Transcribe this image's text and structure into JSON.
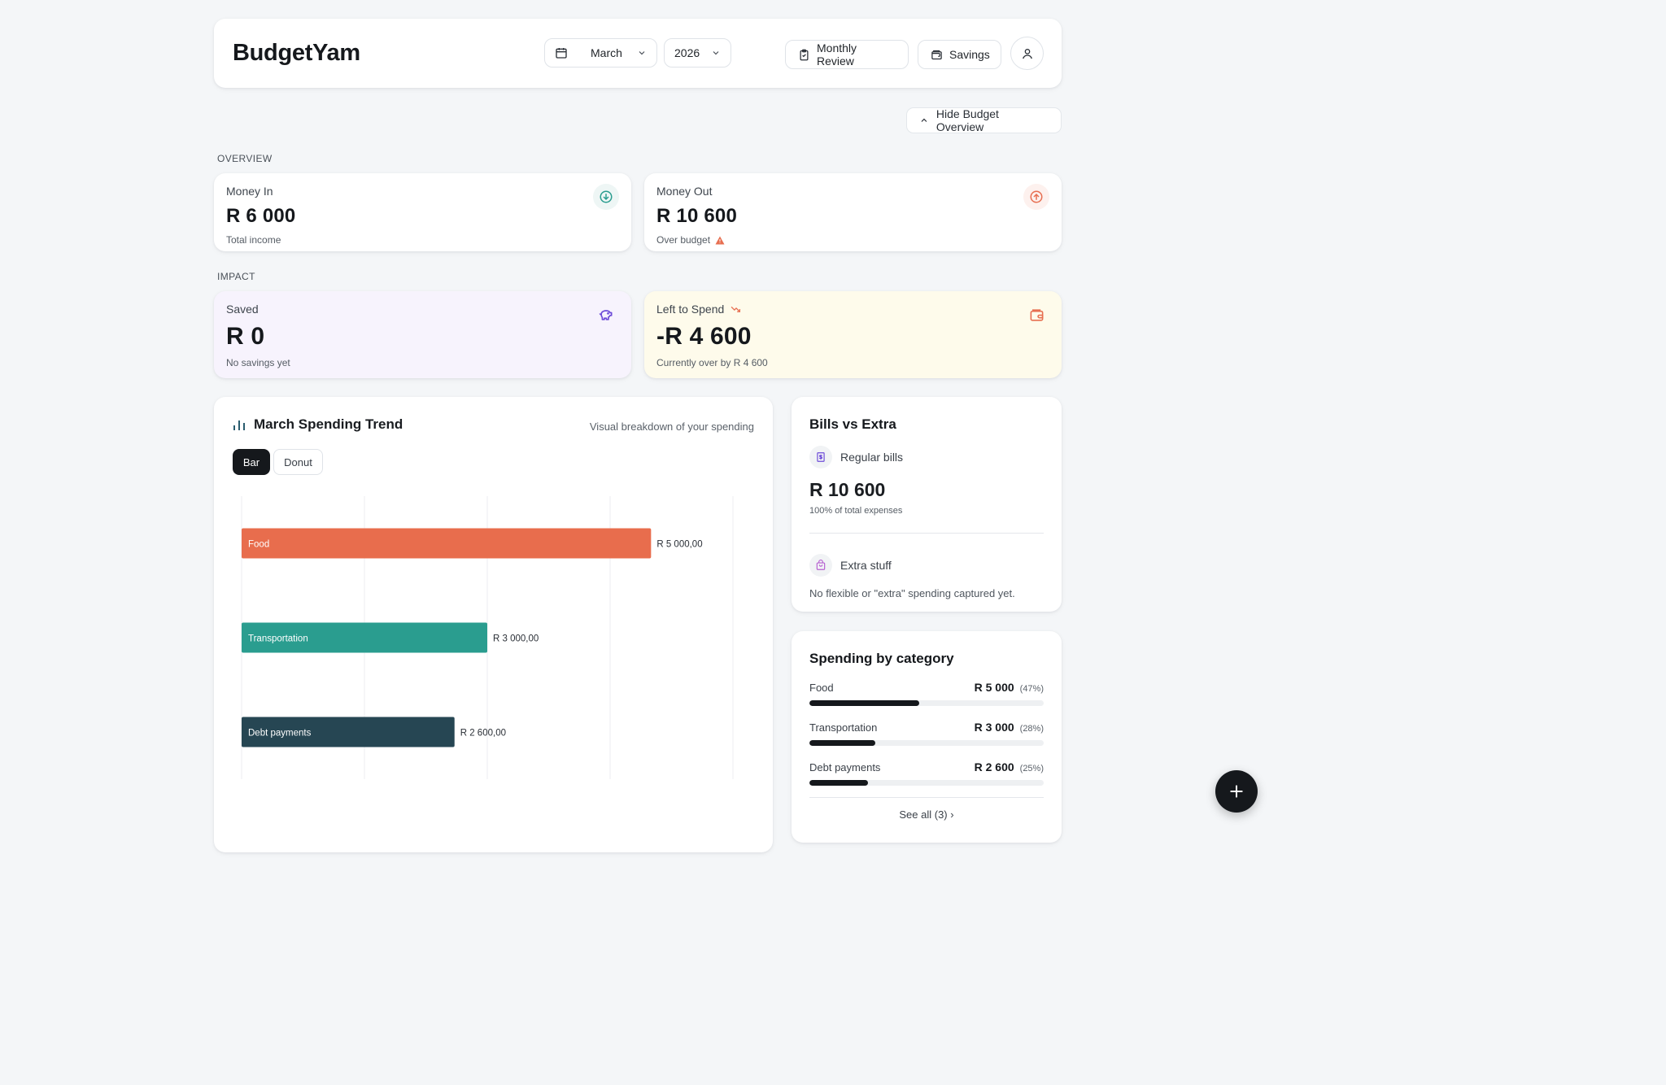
{
  "app": {
    "name": "BudgetYam"
  },
  "header": {
    "month": "March",
    "year": "2026",
    "review_label": "Monthly Review",
    "savings_label": "Savings"
  },
  "hide_overview_label": "Hide Budget Overview",
  "sections": {
    "overview": "OVERVIEW",
    "impact": "IMPACT"
  },
  "money_in": {
    "label": "Money In",
    "amount": "R 6 000",
    "sub": "Total income"
  },
  "money_out": {
    "label": "Money Out",
    "amount": "R 10 600",
    "sub": "Over budget"
  },
  "saved": {
    "label": "Saved",
    "amount": "R 0",
    "sub": "No savings yet"
  },
  "left_to_spend": {
    "label": "Left to Spend",
    "amount": "-R 4 600",
    "sub": "Currently over by R 4 600"
  },
  "trend": {
    "title": "March Spending Trend",
    "subtitle": "Visual breakdown of your spending",
    "tab_bar": "Bar",
    "tab_donut": "Donut"
  },
  "chart_data": {
    "type": "bar",
    "orientation": "horizontal",
    "categories": [
      "Food",
      "Transportation",
      "Debt payments"
    ],
    "values": [
      5000,
      3000,
      2600
    ],
    "value_labels": [
      "R 5 000,00",
      "R 3 000,00",
      "R 2 600,00"
    ],
    "colors": [
      "#e86d4d",
      "#2a9d8f",
      "#264653"
    ],
    "xlim": [
      0,
      6000
    ],
    "grid": true
  },
  "bills": {
    "title": "Bills vs Extra",
    "regular_label": "Regular bills",
    "regular_amount": "R 10 600",
    "regular_pct": "100% of total expenses",
    "extra_label": "Extra stuff",
    "extra_note": "No flexible or \"extra\" spending captured yet."
  },
  "categories": {
    "title": "Spending by category",
    "items": [
      {
        "name": "Food",
        "amount": "R 5 000",
        "pct_label": "(47%)",
        "pct": 47
      },
      {
        "name": "Transportation",
        "amount": "R 3 000",
        "pct_label": "(28%)",
        "pct": 28
      },
      {
        "name": "Debt payments",
        "amount": "R 2 600",
        "pct_label": "(25%)",
        "pct": 25
      }
    ],
    "see_all": "See all (3) ›"
  },
  "icons": {
    "calendar": "calendar-icon",
    "chevron": "chevron-down-icon",
    "clipboard": "clipboard-icon",
    "wallet": "wallet-icon",
    "user": "user-icon",
    "arrow_down": "arrow-down-circle-icon",
    "arrow_up": "arrow-up-circle-icon",
    "piggy": "piggy-bank-icon",
    "plus": "plus-icon"
  },
  "colors": {
    "income": "#2a9d8f",
    "expense": "#e76f51",
    "saved_bg": "#f7f3fd",
    "left_bg": "#fefbeb",
    "accent_purple": "#6d4bd8"
  }
}
